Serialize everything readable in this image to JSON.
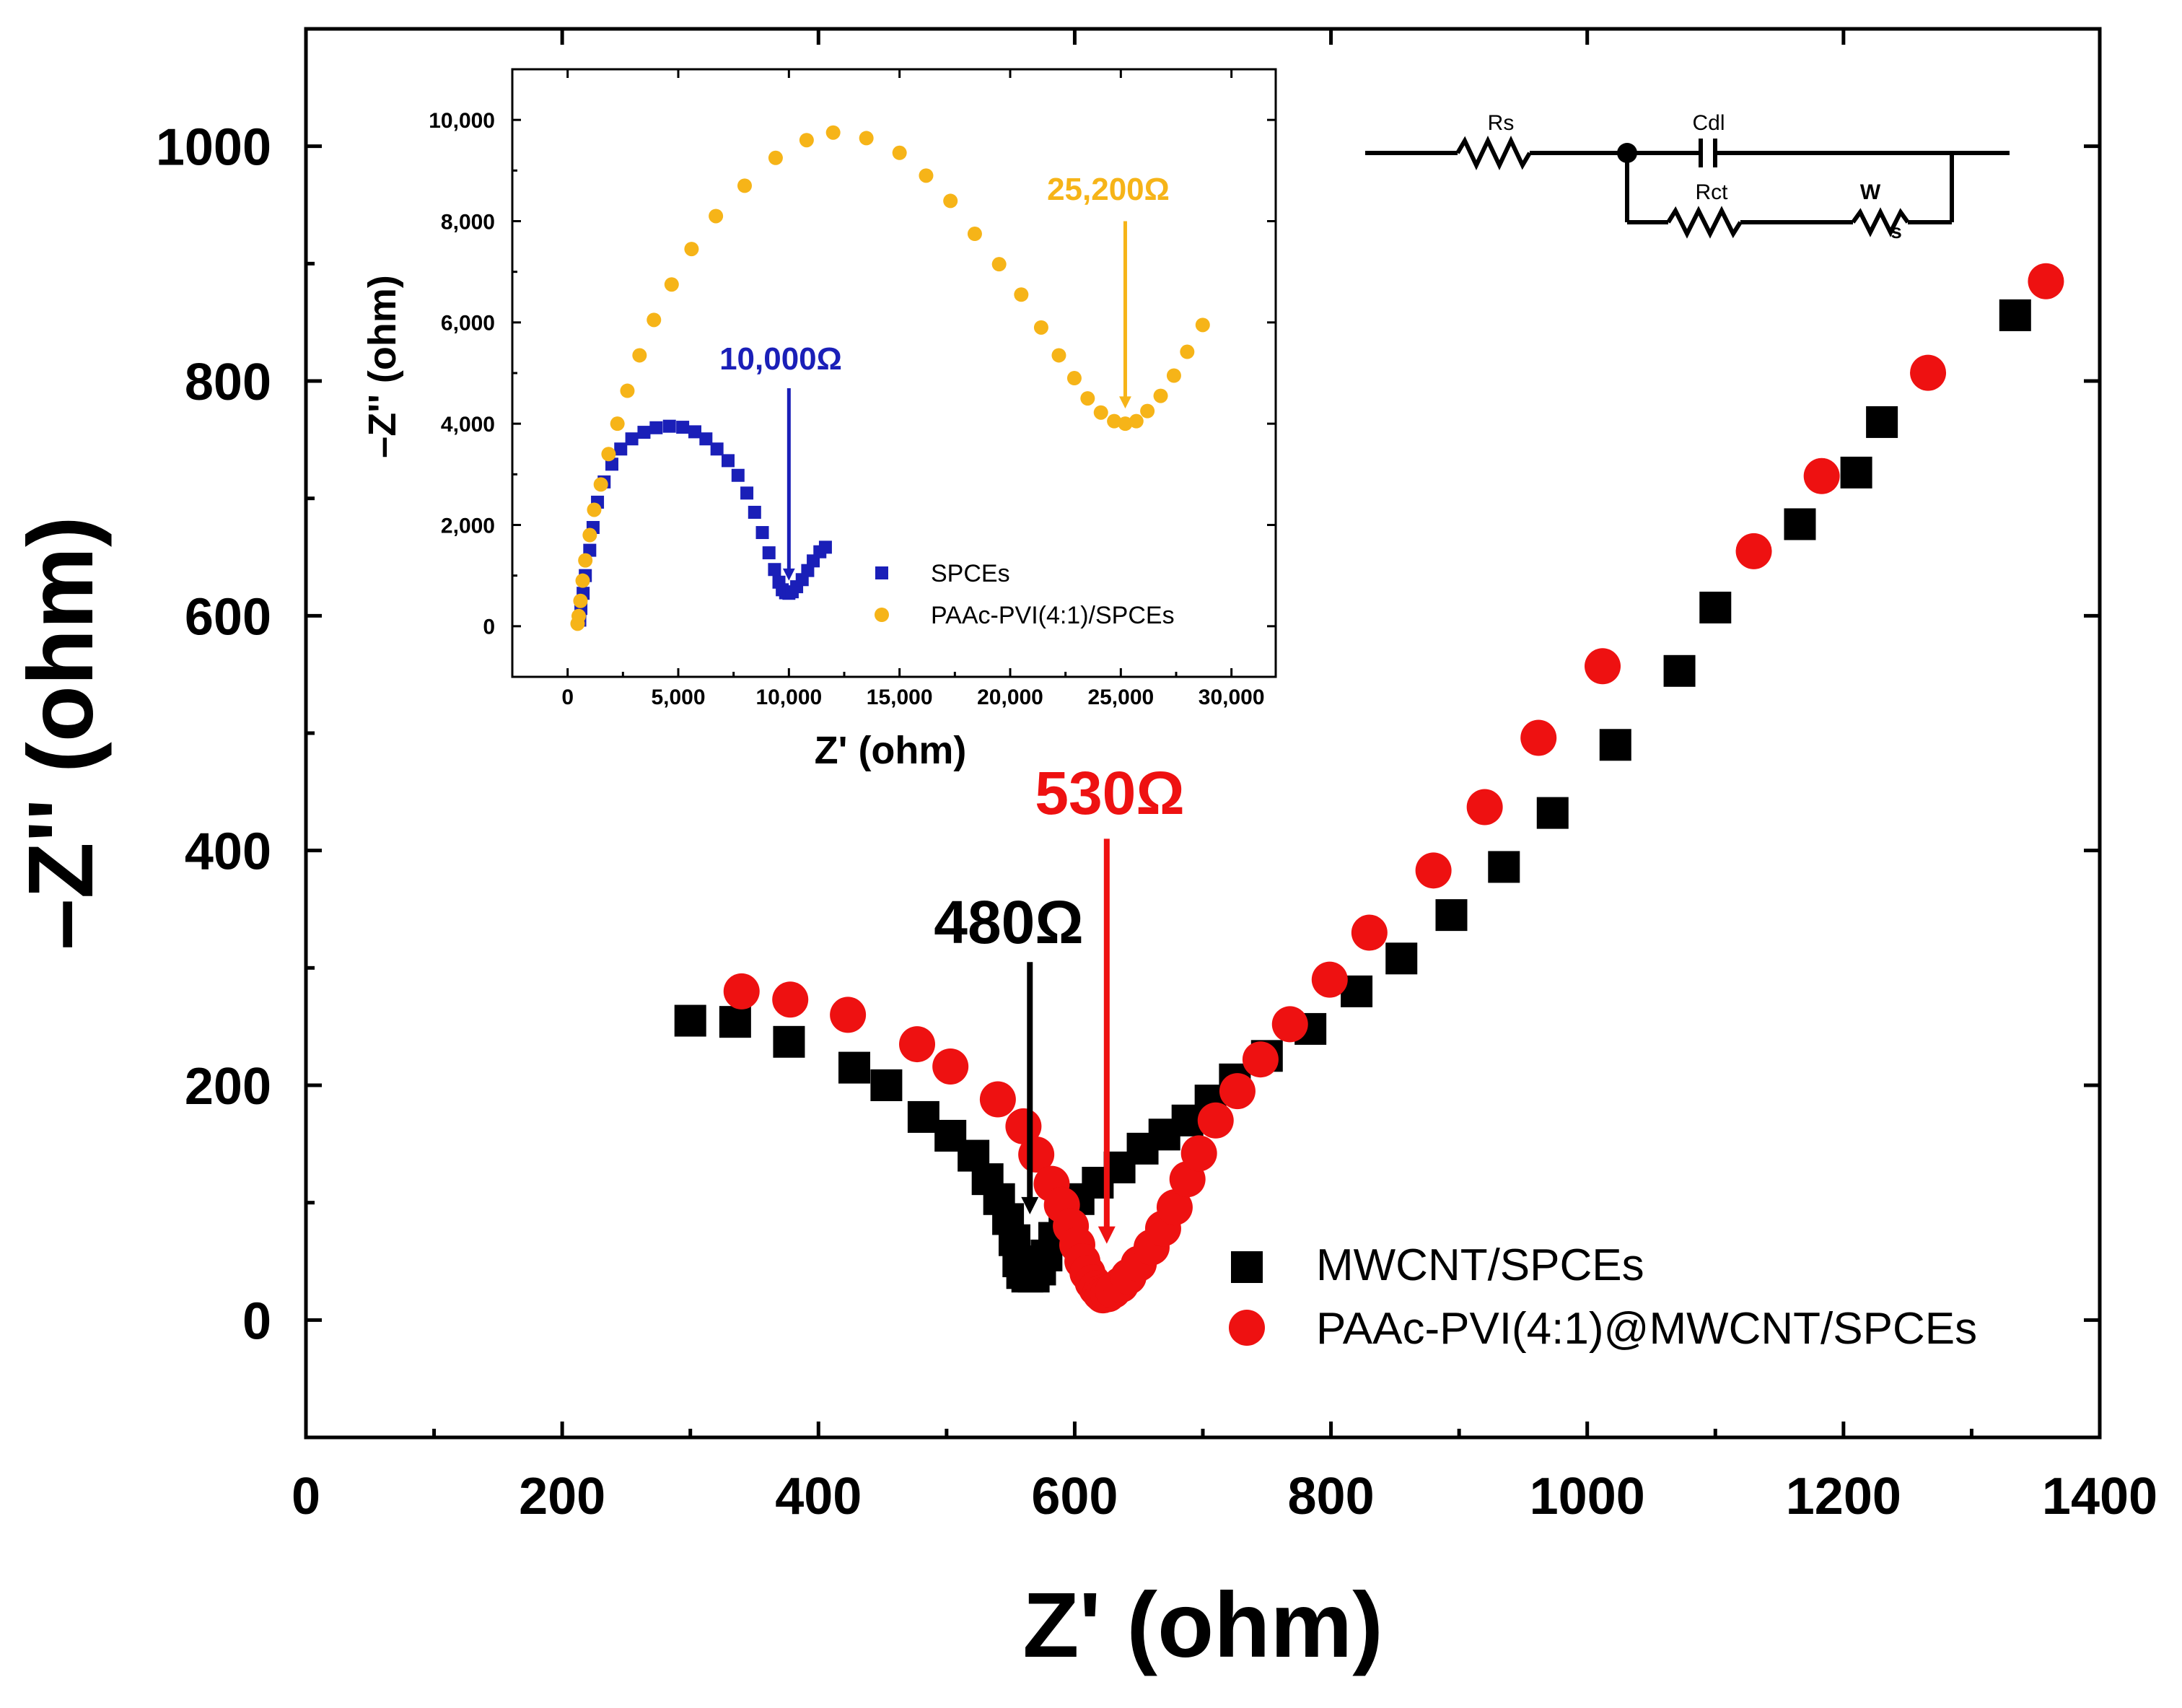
{
  "colors": {
    "axis": "#000000",
    "mwcnt": "#000000",
    "paac_main": "#ee1111",
    "spces": "#1a1fb8",
    "paac_inset": "#f6b418",
    "label_480": "#000000",
    "label_530": "#ee1111",
    "label_10000": "#1a1fb8",
    "label_25200": "#f6b418"
  },
  "chart_data": [
    {
      "id": "main",
      "type": "scatter",
      "xlabel": "Z' (ohm)",
      "ylabel": "–Z'' (ohm)",
      "xlim": [
        0,
        1400
      ],
      "ylim": [
        -100,
        1100
      ],
      "xticks": [
        0,
        200,
        400,
        600,
        800,
        1000,
        1200,
        1400
      ],
      "xtick_labels": [
        "0",
        "200",
        "400",
        "600",
        "800",
        "1000",
        "1200",
        "1400"
      ],
      "yticks": [
        0,
        200,
        400,
        600,
        800,
        1000
      ],
      "ytick_labels": [
        "0",
        "200",
        "400",
        "600",
        "800",
        "1000"
      ],
      "legend": {
        "position": "bottom-right",
        "entries": [
          "MWCNT/SPCEs",
          "PAAc-PVI(4:1)@MWCNT/SPCEs"
        ]
      },
      "series": [
        {
          "name": "MWCNT/SPCEs",
          "marker": "square",
          "color": "#000000",
          "points": [
            [
              300,
              255
            ],
            [
              335,
              254
            ],
            [
              377,
              237
            ],
            [
              428,
              215
            ],
            [
              453,
              200
            ],
            [
              482,
              173
            ],
            [
              503,
              157
            ],
            [
              521,
              140
            ],
            [
              532,
              120
            ],
            [
              541,
              103
            ],
            [
              548,
              86
            ],
            [
              553,
              68
            ],
            [
              556,
              50
            ],
            [
              559,
              40
            ],
            [
              563,
              37
            ],
            [
              568,
              37
            ],
            [
              573,
              43
            ],
            [
              578,
              55
            ],
            [
              584,
              70
            ],
            [
              592,
              90
            ],
            [
              603,
              103
            ],
            [
              618,
              117
            ],
            [
              635,
              130
            ],
            [
              653,
              146
            ],
            [
              670,
              158
            ],
            [
              688,
              170
            ],
            [
              706,
              187
            ],
            [
              725,
              205
            ],
            [
              750,
              225
            ],
            [
              784,
              248
            ],
            [
              820,
              280
            ],
            [
              855,
              308
            ],
            [
              894,
              345
            ],
            [
              935,
              386
            ],
            [
              973,
              432
            ],
            [
              1022,
              490
            ],
            [
              1072,
              553
            ],
            [
              1100,
              607
            ],
            [
              1166,
              678
            ],
            [
              1210,
              722
            ],
            [
              1230,
              765
            ],
            [
              1334,
              856
            ]
          ]
        },
        {
          "name": "PAAc-PVI(4:1)@MWCNT/SPCEs",
          "marker": "circle",
          "color": "#ee1111",
          "points": [
            [
              340,
              280
            ],
            [
              378,
              273
            ],
            [
              423,
              260
            ],
            [
              477,
              235
            ],
            [
              503,
              216
            ],
            [
              540,
              188
            ],
            [
              560,
              165
            ],
            [
              570,
              141
            ],
            [
              582,
              116
            ],
            [
              590,
              98
            ],
            [
              597,
              80
            ],
            [
              602,
              64
            ],
            [
              606,
              50
            ],
            [
              610,
              40
            ],
            [
              614,
              32
            ],
            [
              617,
              27
            ],
            [
              620,
              23
            ],
            [
              622,
              21
            ],
            [
              626,
              22
            ],
            [
              630,
              25
            ],
            [
              636,
              30
            ],
            [
              642,
              37
            ],
            [
              650,
              48
            ],
            [
              660,
              62
            ],
            [
              669,
              78
            ],
            [
              678,
              96
            ],
            [
              688,
              120
            ],
            [
              697,
              142
            ],
            [
              710,
              170
            ],
            [
              727,
              195
            ],
            [
              745,
              222
            ],
            [
              768,
              252
            ],
            [
              799,
              290
            ],
            [
              830,
              330
            ],
            [
              880,
              383
            ],
            [
              920,
              437
            ],
            [
              962,
              496
            ],
            [
              1012,
              557
            ],
            [
              1130,
              655
            ],
            [
              1183,
              719
            ],
            [
              1266,
              807
            ],
            [
              1358,
              885
            ]
          ]
        }
      ],
      "annotations": [
        {
          "text": "480Ω",
          "color": "#000000",
          "arrow_x": 565,
          "arrow_from": 305,
          "arrow_to": 90
        },
        {
          "text": "530Ω",
          "color": "#ee1111",
          "arrow_x": 625,
          "arrow_from": 410,
          "arrow_to": 65
        }
      ],
      "circuit": {
        "labels": [
          "Rs",
          "Cdl",
          "Rct",
          "W",
          "s"
        ]
      }
    },
    {
      "id": "inset",
      "type": "scatter",
      "xlabel": "Z' (ohm)",
      "ylabel": "–Z'' (ohm)",
      "xlim": [
        -2500,
        32000
      ],
      "ylim": [
        -1000,
        11000
      ],
      "xticks": [
        0,
        5000,
        10000,
        15000,
        20000,
        25000,
        30000
      ],
      "xtick_labels": [
        "0",
        "5,000",
        "10,000",
        "15,000",
        "20,000",
        "25,000",
        "30,000"
      ],
      "yticks": [
        0,
        2000,
        4000,
        6000,
        8000,
        10000
      ],
      "ytick_labels": [
        "0",
        "2,000",
        "4,000",
        "6,000",
        "8,000",
        "10,000"
      ],
      "legend": {
        "position": "bottom-right",
        "entries": [
          "SPCEs",
          "PAAc-PVI(4:1)/SPCEs"
        ]
      },
      "series": [
        {
          "name": "SPCEs",
          "marker": "square",
          "color": "#1a1fb8",
          "points": [
            [
              550,
              120
            ],
            [
              600,
              350
            ],
            [
              700,
              650
            ],
            [
              800,
              1000
            ],
            [
              1000,
              1500
            ],
            [
              1150,
              1950
            ],
            [
              1350,
              2450
            ],
            [
              1650,
              2850
            ],
            [
              2000,
              3200
            ],
            [
              2400,
              3500
            ],
            [
              2900,
              3700
            ],
            [
              3450,
              3830
            ],
            [
              4000,
              3920
            ],
            [
              4600,
              3950
            ],
            [
              5200,
              3930
            ],
            [
              5750,
              3840
            ],
            [
              6250,
              3700
            ],
            [
              6750,
              3500
            ],
            [
              7250,
              3270
            ],
            [
              7700,
              2980
            ],
            [
              8100,
              2630
            ],
            [
              8450,
              2250
            ],
            [
              8800,
              1850
            ],
            [
              9100,
              1450
            ],
            [
              9350,
              1120
            ],
            [
              9550,
              870
            ],
            [
              9700,
              720
            ],
            [
              9850,
              660
            ],
            [
              10000,
              650
            ],
            [
              10150,
              680
            ],
            [
              10350,
              780
            ],
            [
              10600,
              920
            ],
            [
              10850,
              1100
            ],
            [
              11100,
              1290
            ],
            [
              11400,
              1470
            ],
            [
              11650,
              1560
            ]
          ]
        },
        {
          "name": "PAAc-PVI(4:1)/SPCEs",
          "marker": "circle",
          "color": "#f6b418",
          "points": [
            [
              450,
              50
            ],
            [
              500,
              200
            ],
            [
              580,
              500
            ],
            [
              680,
              900
            ],
            [
              800,
              1300
            ],
            [
              1000,
              1800
            ],
            [
              1200,
              2300
            ],
            [
              1500,
              2800
            ],
            [
              1850,
              3400
            ],
            [
              2250,
              4000
            ],
            [
              2700,
              4650
            ],
            [
              3250,
              5350
            ],
            [
              3900,
              6050
            ],
            [
              4700,
              6750
            ],
            [
              5600,
              7450
            ],
            [
              6700,
              8100
            ],
            [
              8000,
              8700
            ],
            [
              9400,
              9250
            ],
            [
              10800,
              9600
            ],
            [
              12000,
              9750
            ],
            [
              13500,
              9640
            ],
            [
              15000,
              9350
            ],
            [
              16200,
              8900
            ],
            [
              17300,
              8400
            ],
            [
              18400,
              7750
            ],
            [
              19500,
              7150
            ],
            [
              20500,
              6550
            ],
            [
              21400,
              5900
            ],
            [
              22200,
              5350
            ],
            [
              22900,
              4900
            ],
            [
              23500,
              4500
            ],
            [
              24100,
              4220
            ],
            [
              24700,
              4050
            ],
            [
              25200,
              4000
            ],
            [
              25700,
              4050
            ],
            [
              26200,
              4250
            ],
            [
              26800,
              4550
            ],
            [
              27400,
              4950
            ],
            [
              28000,
              5420
            ],
            [
              28700,
              5950
            ]
          ]
        }
      ],
      "annotations": [
        {
          "text": "10,000Ω",
          "color": "#1a1fb8",
          "arrow_x": 10000,
          "arrow_from": 4700,
          "arrow_to": 900
        },
        {
          "text": "25,200Ω",
          "color": "#f6b418",
          "arrow_x": 25200,
          "arrow_from": 8000,
          "arrow_to": 4300
        }
      ]
    }
  ]
}
